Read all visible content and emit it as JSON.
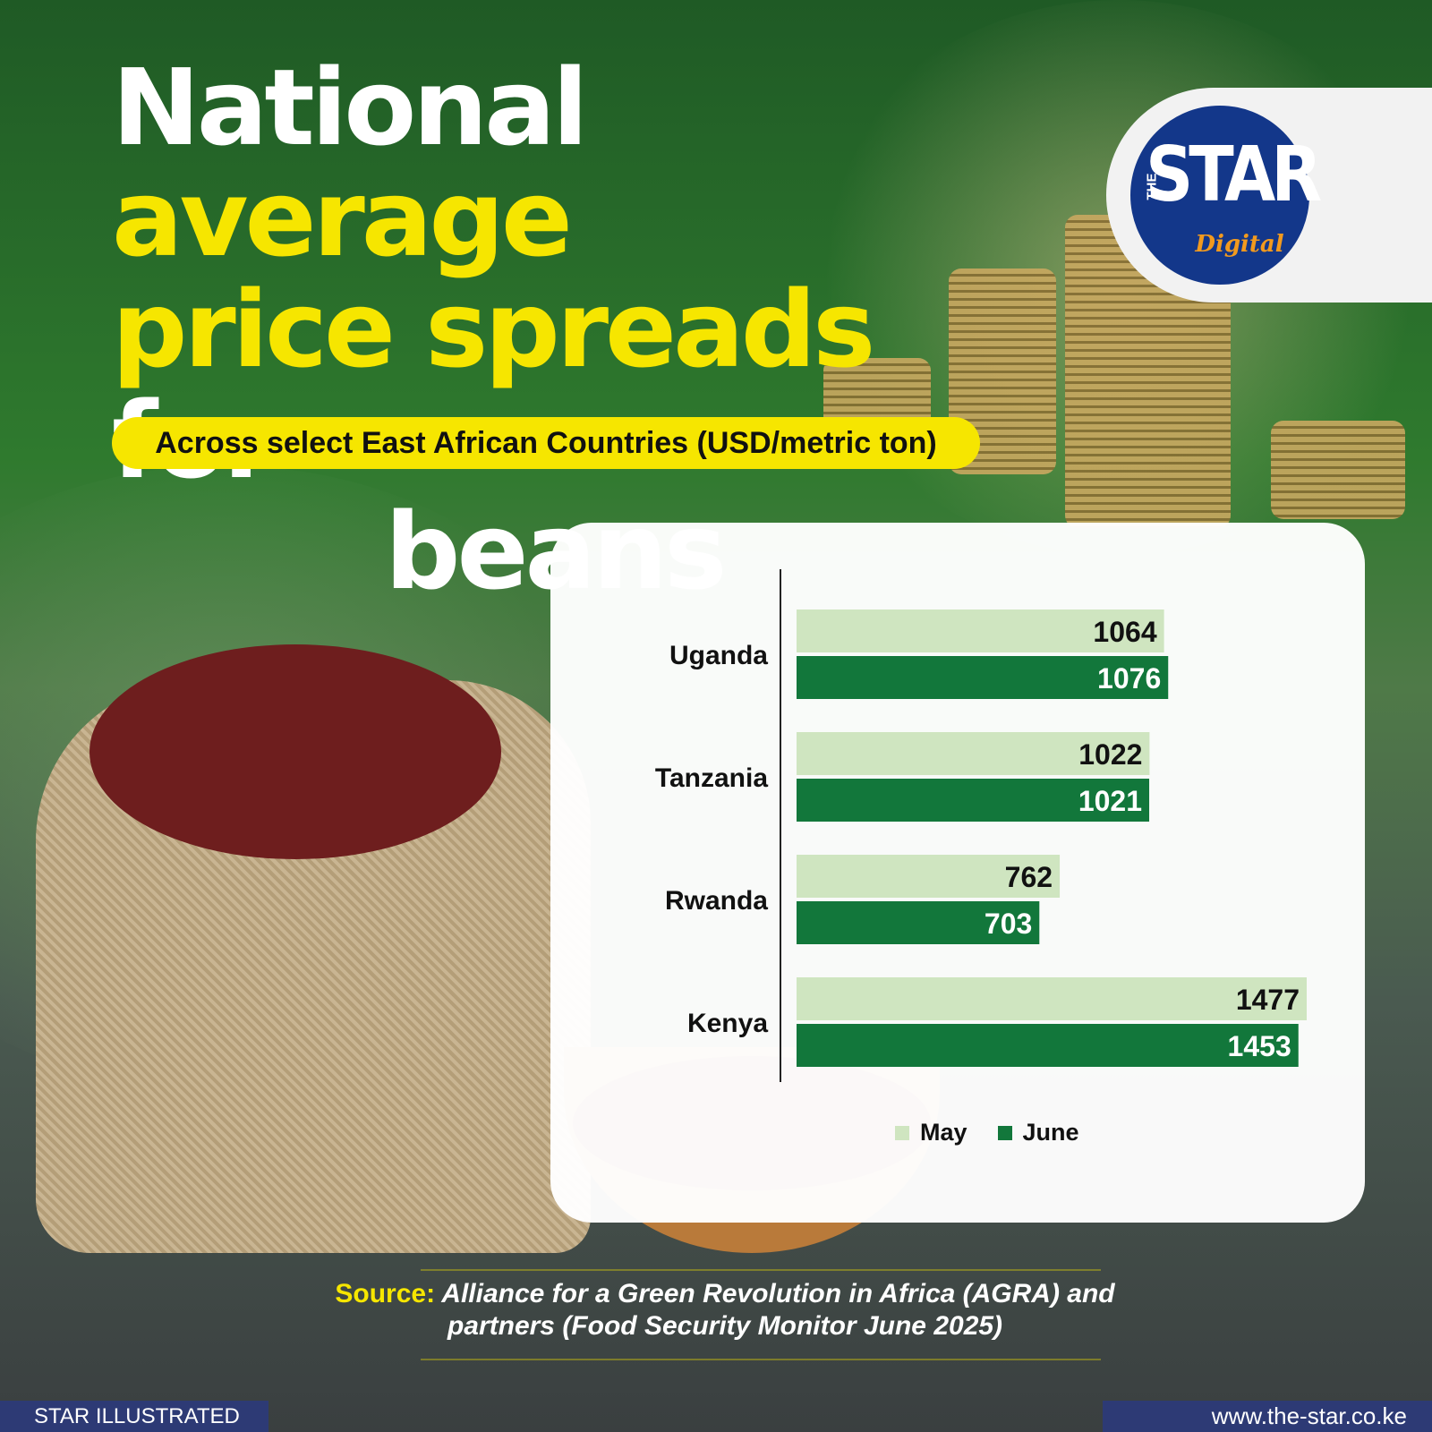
{
  "header": {
    "title_parts": [
      "National",
      "average",
      "price spreads",
      "for",
      "beans"
    ],
    "subtitle": "Across select East African Countries (USD/metric ton)"
  },
  "logo": {
    "small": "THE",
    "main": "STAR",
    "sub": "Digital",
    "colors": {
      "circle": "#13378a",
      "accent": "#f29a1e"
    }
  },
  "chart_data": {
    "type": "bar",
    "orientation": "horizontal",
    "categories": [
      "Uganda",
      "Tanzania",
      "Rwanda",
      "Kenya"
    ],
    "series": [
      {
        "name": "May",
        "values": [
          1064,
          1022,
          762,
          1477
        ],
        "color": "#cfe5c0"
      },
      {
        "name": "June",
        "values": [
          1076,
          1021,
          703,
          1453
        ],
        "color": "#12773b"
      }
    ],
    "xlim": [
      0,
      1477
    ],
    "grid": false,
    "data_labels": true,
    "legend": "bottom"
  },
  "source": {
    "label": "Source:",
    "text": "Alliance for a Green Revolution in Africa (AGRA) and partners (Food Security Monitor June 2025)"
  },
  "footer": {
    "left": "STAR ILLUSTRATED",
    "right": "www.the-star.co.ke"
  },
  "colors": {
    "title_white": "#ffffff",
    "title_highlight": "#f6e600",
    "footer_bar": "#2d3a75"
  }
}
